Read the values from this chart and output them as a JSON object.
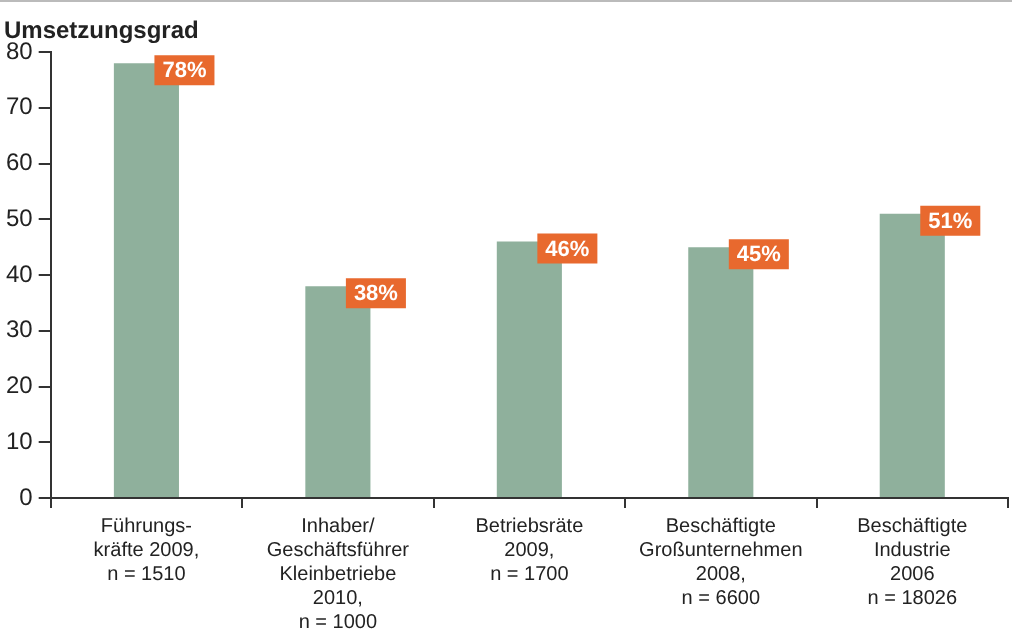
{
  "chart_data": {
    "type": "bar",
    "ylabel": "Umsetzungsgrad",
    "categories": [
      "Führungs-\nkräfte 2009,\nn = 1510",
      "Inhaber/\nGeschäftsführer\nKleinbetriebe\n2010,\nn = 1000",
      "Betriebsräte\n2009,\nn = 1700",
      "Beschäftigte\nGroßunternehmen\n2008,\nn = 6600",
      "Beschäftigte\nIndustrie\n2006\nn = 18026"
    ],
    "values": [
      78,
      38,
      46,
      45,
      51
    ],
    "value_labels": [
      "78%",
      "38%",
      "46%",
      "45%",
      "51%"
    ],
    "color": "#8fb09c",
    "ylim": [
      0,
      80
    ],
    "yticks": [
      0,
      10,
      20,
      30,
      40,
      50,
      60,
      70,
      80
    ],
    "grid": false,
    "legend": false
  }
}
